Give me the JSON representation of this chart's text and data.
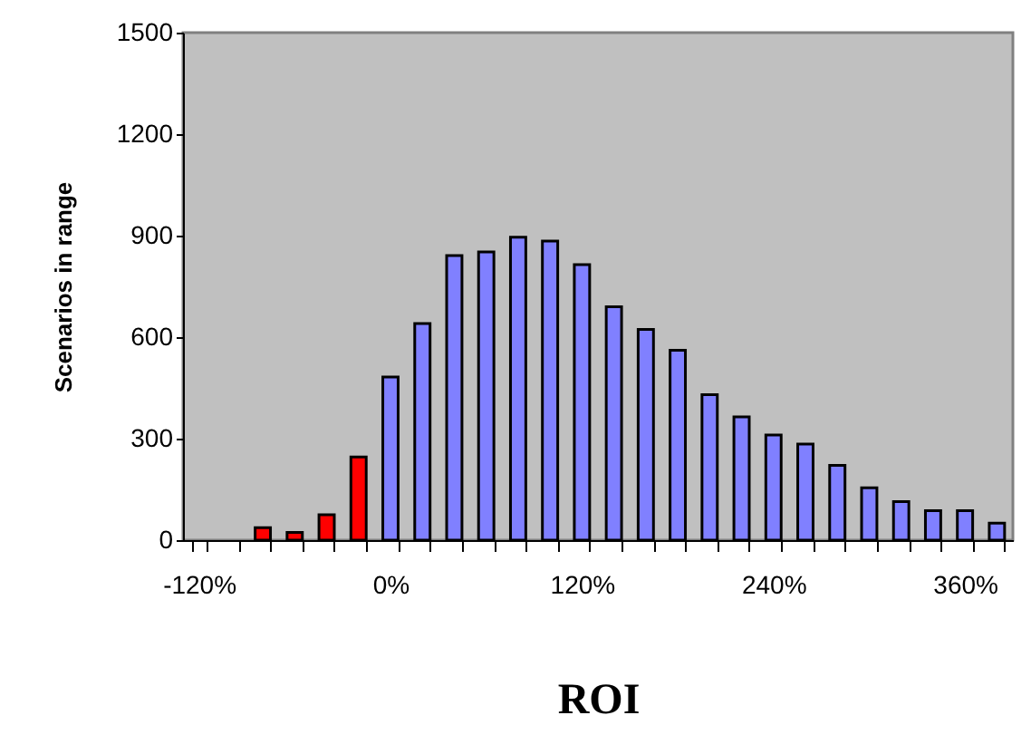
{
  "chart_data": {
    "type": "bar",
    "xlabel": "ROI",
    "ylabel": "Scenarios in range",
    "categories": [
      "-120%",
      null,
      null,
      null,
      null,
      null,
      "0%",
      null,
      null,
      null,
      null,
      null,
      "120%",
      null,
      null,
      null,
      null,
      null,
      "240%",
      null,
      null,
      null,
      null,
      null,
      "360%",
      null
    ],
    "values": [
      null,
      null,
      37,
      23,
      75,
      246,
      482,
      640,
      841,
      852,
      895,
      884,
      814,
      690,
      623,
      561,
      430,
      364,
      311,
      284,
      221,
      155,
      114,
      87,
      87,
      50
    ],
    "colors": [
      null,
      null,
      "#ff0000",
      "#ff0000",
      "#ff0000",
      "#ff0000",
      "#8080ff",
      "#8080ff",
      "#8080ff",
      "#8080ff",
      "#8080ff",
      "#8080ff",
      "#8080ff",
      "#8080ff",
      "#8080ff",
      "#8080ff",
      "#8080ff",
      "#8080ff",
      "#8080ff",
      "#8080ff",
      "#8080ff",
      "#8080ff",
      "#8080ff",
      "#8080ff",
      "#8080ff",
      "#8080ff"
    ],
    "ylim": [
      0,
      1500
    ],
    "yticks": [
      0,
      300,
      600,
      900,
      1200,
      1500
    ],
    "grid": false
  }
}
